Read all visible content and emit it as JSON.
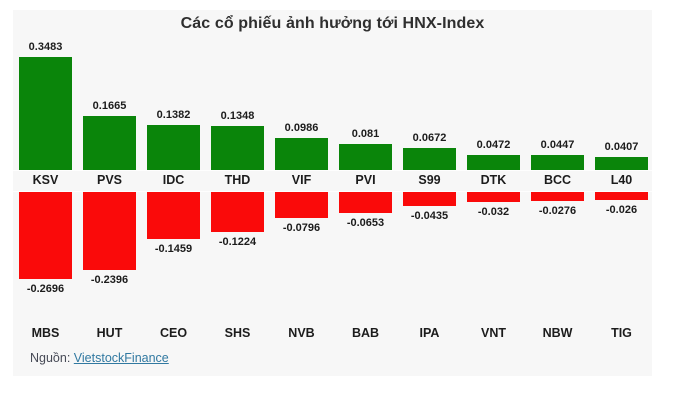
{
  "source": {
    "prefix": "Nguồn:",
    "link_text": "VietstockFinance",
    "link_color": "#3179a1"
  },
  "colors": {
    "positive": "#0a850a",
    "negative": "#fa0a0a",
    "panel_background": "#f7f7f7",
    "page_background": "#ffffff",
    "text": "#1c1c1c"
  },
  "chart_data": {
    "type": "bar",
    "title": "Các cổ phiếu ảnh hưởng tới HNX-Index",
    "xlabel": "",
    "ylabel": "",
    "grid": false,
    "legend": false,
    "value_range_hint": [
      -0.2696,
      0.3483
    ],
    "series": [
      {
        "id": "gainers",
        "direction": "up",
        "color": "#0a850a",
        "points": [
          {
            "ticker": "KSV",
            "value": 0.3483,
            "label": "0.3483"
          },
          {
            "ticker": "PVS",
            "value": 0.1665,
            "label": "0.1665"
          },
          {
            "ticker": "IDC",
            "value": 0.1382,
            "label": "0.1382"
          },
          {
            "ticker": "THD",
            "value": 0.1348,
            "label": "0.1348"
          },
          {
            "ticker": "VIF",
            "value": 0.0986,
            "label": "0.0986"
          },
          {
            "ticker": "PVI",
            "value": 0.081,
            "label": "0.081"
          },
          {
            "ticker": "S99",
            "value": 0.0672,
            "label": "0.0672"
          },
          {
            "ticker": "DTK",
            "value": 0.0472,
            "label": "0.0472"
          },
          {
            "ticker": "BCC",
            "value": 0.0447,
            "label": "0.0447"
          },
          {
            "ticker": "L40",
            "value": 0.0407,
            "label": "0.0407"
          }
        ]
      },
      {
        "id": "losers",
        "direction": "down",
        "color": "#fa0a0a",
        "points": [
          {
            "ticker": "MBS",
            "value": -0.2696,
            "label": "-0.2696"
          },
          {
            "ticker": "HUT",
            "value": -0.2396,
            "label": "-0.2396"
          },
          {
            "ticker": "CEO",
            "value": -0.1459,
            "label": "-0.1459"
          },
          {
            "ticker": "SHS",
            "value": -0.1224,
            "label": "-0.1224"
          },
          {
            "ticker": "NVB",
            "value": -0.0796,
            "label": "-0.0796"
          },
          {
            "ticker": "BAB",
            "value": -0.0653,
            "label": "-0.0653"
          },
          {
            "ticker": "IPA",
            "value": -0.0435,
            "label": "-0.0435"
          },
          {
            "ticker": "VNT",
            "value": -0.032,
            "label": "-0.032"
          },
          {
            "ticker": "NBW",
            "value": -0.0276,
            "label": "-0.0276"
          },
          {
            "ticker": "TIG",
            "value": -0.026,
            "label": "-0.026"
          }
        ]
      }
    ]
  }
}
